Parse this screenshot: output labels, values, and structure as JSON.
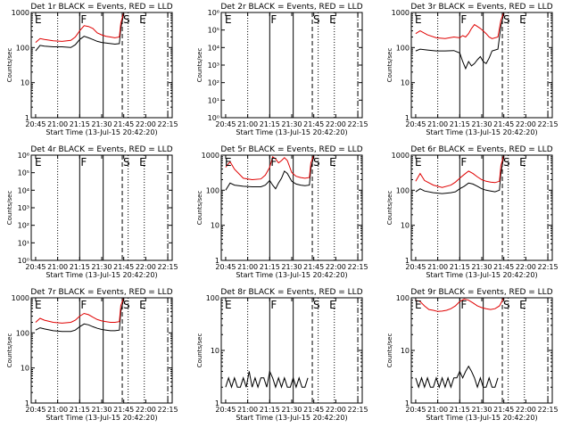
{
  "figure": {
    "start_time_label": "Start Time (13-Jul-15 20:42:20)",
    "ylabel": "Counts/sec",
    "x_ticks": [
      "20:45",
      "21:00",
      "21:15",
      "21:30",
      "21:45",
      "22:00",
      "22:15"
    ],
    "marker_labels": {
      "E": "E",
      "F": "F",
      "S": "S"
    }
  },
  "chart_data": [
    {
      "type": "line",
      "title": "Det 1r BLACK = Events, RED = LLD",
      "log_y": true,
      "ylim": [
        1,
        1000
      ],
      "y_ticks": [
        "1",
        "10",
        "100",
        "1000"
      ],
      "series": [
        {
          "name": "Events",
          "color": "#000000",
          "x": [
            0,
            3,
            6,
            12,
            18,
            24,
            27,
            30,
            33,
            36,
            39,
            42,
            45,
            48,
            51,
            54,
            57,
            58,
            60
          ],
          "y": [
            80,
            115,
            110,
            105,
            105,
            100,
            120,
            170,
            210,
            190,
            170,
            150,
            140,
            135,
            130,
            125,
            130,
            350,
            950
          ]
        },
        {
          "name": "LLD",
          "color": "#e00000",
          "x": [
            0,
            3,
            6,
            12,
            18,
            24,
            27,
            30,
            33,
            36,
            39,
            42,
            45,
            48,
            51,
            54,
            57,
            58,
            60
          ],
          "y": [
            140,
            180,
            170,
            155,
            150,
            160,
            200,
            300,
            420,
            400,
            350,
            260,
            230,
            210,
            200,
            190,
            200,
            500,
            1000
          ]
        }
      ]
    },
    {
      "type": "line",
      "title": "Det 2r BLACK = Events, RED = LLD",
      "log_y": true,
      "ylim": [
        1,
        1000000
      ],
      "y_ticks": [
        "10⁰",
        "10¹",
        "10²",
        "10³",
        "10⁴",
        "10⁵",
        "10⁶"
      ],
      "series": []
    },
    {
      "type": "line",
      "title": "Det 3r BLACK = Events, RED = LLD",
      "log_y": true,
      "ylim": [
        1,
        1000
      ],
      "y_ticks": [
        "1",
        "10",
        "100",
        "1000"
      ],
      "series": [
        {
          "name": "Events",
          "color": "#000000",
          "x": [
            0,
            3,
            8,
            14,
            20,
            26,
            30,
            32,
            34,
            36,
            38,
            40,
            42,
            44,
            46,
            48,
            50,
            52,
            56,
            58,
            60
          ],
          "y": [
            80,
            90,
            85,
            80,
            80,
            82,
            70,
            40,
            25,
            40,
            30,
            35,
            45,
            55,
            40,
            35,
            50,
            80,
            90,
            400,
            950
          ]
        },
        {
          "name": "LLD",
          "color": "#e00000",
          "x": [
            0,
            3,
            8,
            14,
            20,
            26,
            30,
            32,
            34,
            36,
            38,
            40,
            42,
            44,
            46,
            48,
            50,
            52,
            56,
            58,
            60
          ],
          "y": [
            250,
            300,
            230,
            190,
            180,
            200,
            190,
            220,
            200,
            250,
            350,
            450,
            400,
            350,
            300,
            250,
            200,
            180,
            200,
            600,
            1000
          ]
        }
      ]
    },
    {
      "type": "line",
      "title": "Det 4r BLACK = Events, RED = LLD",
      "log_y": true,
      "ylim": [
        1,
        1000000
      ],
      "y_ticks": [
        "10⁰",
        "10¹",
        "10²",
        "10³",
        "10⁴",
        "10⁵",
        "10⁶"
      ],
      "series": []
    },
    {
      "type": "line",
      "title": "Det 5r BLACK = Events, RED = LLD",
      "log_y": true,
      "ylim": [
        1,
        1000
      ],
      "y_ticks": [
        "1",
        "10",
        "100",
        "1000"
      ],
      "series": [
        {
          "name": "Events",
          "color": "#000000",
          "x": [
            0,
            3,
            6,
            12,
            18,
            24,
            27,
            30,
            32,
            34,
            36,
            38,
            40,
            42,
            45,
            48,
            51,
            54,
            57,
            58,
            60
          ],
          "y": [
            100,
            160,
            140,
            130,
            125,
            125,
            140,
            190,
            140,
            110,
            160,
            220,
            350,
            300,
            180,
            150,
            140,
            135,
            140,
            400,
            950
          ]
        },
        {
          "name": "LLD",
          "color": "#e00000",
          "x": [
            0,
            3,
            6,
            12,
            18,
            24,
            27,
            30,
            32,
            34,
            36,
            38,
            40,
            42,
            45,
            48,
            51,
            54,
            57,
            58,
            60
          ],
          "y": [
            450,
            650,
            400,
            220,
            200,
            210,
            270,
            450,
            900,
            780,
            600,
            700,
            850,
            700,
            320,
            250,
            230,
            220,
            230,
            600,
            1000
          ]
        }
      ]
    },
    {
      "type": "line",
      "title": "Det 6r BLACK = Events, RED = LLD",
      "log_y": true,
      "ylim": [
        1,
        1000
      ],
      "y_ticks": [
        "1",
        "10",
        "100",
        "1000"
      ],
      "series": [
        {
          "name": "Events",
          "color": "#000000",
          "x": [
            0,
            3,
            6,
            12,
            18,
            24,
            27,
            30,
            33,
            36,
            39,
            42,
            45,
            48,
            51,
            54,
            57,
            58,
            60
          ],
          "y": [
            90,
            110,
            95,
            85,
            80,
            85,
            90,
            110,
            130,
            160,
            150,
            130,
            110,
            100,
            95,
            90,
            100,
            300,
            950
          ]
        },
        {
          "name": "LLD",
          "color": "#e00000",
          "x": [
            0,
            3,
            6,
            12,
            18,
            24,
            27,
            30,
            33,
            36,
            39,
            42,
            45,
            48,
            51,
            54,
            57,
            58,
            60
          ],
          "y": [
            180,
            300,
            190,
            140,
            120,
            140,
            170,
            220,
            280,
            350,
            300,
            240,
            200,
            180,
            170,
            165,
            180,
            500,
            1000
          ]
        }
      ]
    },
    {
      "type": "line",
      "title": "Det 7r BLACK = Events, RED = LLD",
      "log_y": true,
      "ylim": [
        1,
        1000
      ],
      "y_ticks": [
        "1",
        "10",
        "100",
        "1000"
      ],
      "series": [
        {
          "name": "Events",
          "color": "#000000",
          "x": [
            0,
            3,
            6,
            12,
            18,
            24,
            27,
            30,
            33,
            36,
            39,
            42,
            45,
            48,
            51,
            54,
            57,
            58,
            60
          ],
          "y": [
            120,
            140,
            130,
            115,
            110,
            110,
            120,
            150,
            180,
            170,
            150,
            135,
            125,
            120,
            115,
            115,
            120,
            400,
            950
          ]
        },
        {
          "name": "LLD",
          "color": "#e00000",
          "x": [
            0,
            3,
            6,
            12,
            18,
            24,
            27,
            30,
            33,
            36,
            39,
            42,
            45,
            48,
            51,
            54,
            57,
            58,
            60
          ],
          "y": [
            200,
            260,
            230,
            200,
            190,
            200,
            230,
            300,
            360,
            330,
            280,
            240,
            220,
            210,
            200,
            200,
            210,
            600,
            1000
          ]
        }
      ]
    },
    {
      "type": "line",
      "title": "Det 8r BLACK = Events, RED = LLD",
      "log_y": true,
      "ylim": [
        1,
        100
      ],
      "y_ticks": [
        "1",
        "10",
        "100"
      ],
      "series": [
        {
          "name": "Events",
          "color": "#000000",
          "x": [
            0,
            2,
            4,
            6,
            8,
            10,
            12,
            14,
            16,
            18,
            20,
            22,
            24,
            26,
            28,
            30,
            32,
            34,
            36,
            38,
            40,
            42,
            44,
            46,
            48,
            50,
            52,
            54,
            56
          ],
          "y": [
            2,
            3,
            2,
            3,
            2,
            2,
            3,
            2,
            4,
            2,
            3,
            2,
            3,
            3,
            2,
            4,
            3,
            2,
            3,
            2,
            3,
            2,
            2,
            3,
            2,
            3,
            2,
            2,
            3
          ]
        }
      ]
    },
    {
      "type": "line",
      "title": "Det 9r BLACK = Events, RED = LLD",
      "log_y": true,
      "ylim": [
        1,
        100
      ],
      "y_ticks": [
        "1",
        "10",
        "100"
      ],
      "series": [
        {
          "name": "Events",
          "color": "#000000",
          "x": [
            0,
            2,
            4,
            6,
            8,
            10,
            12,
            14,
            16,
            18,
            20,
            22,
            24,
            26,
            28,
            30,
            32,
            34,
            36,
            38,
            40,
            42,
            44,
            46,
            48,
            50,
            52,
            54,
            56
          ],
          "y": [
            3,
            2,
            3,
            2,
            3,
            2,
            2,
            3,
            2,
            3,
            2,
            3,
            2,
            3,
            3,
            4,
            3,
            4,
            5,
            4,
            3,
            2,
            3,
            2,
            2,
            3,
            2,
            2,
            3
          ]
        },
        {
          "name": "LLD",
          "color": "#e00000",
          "x": [
            0,
            3,
            6,
            9,
            12,
            15,
            18,
            21,
            24,
            27,
            30,
            33,
            36,
            39,
            42,
            45,
            48,
            51,
            54,
            57,
            60
          ],
          "y": [
            90,
            85,
            70,
            60,
            58,
            55,
            56,
            58,
            62,
            70,
            85,
            95,
            90,
            80,
            70,
            65,
            62,
            60,
            62,
            70,
            100
          ]
        }
      ]
    }
  ]
}
